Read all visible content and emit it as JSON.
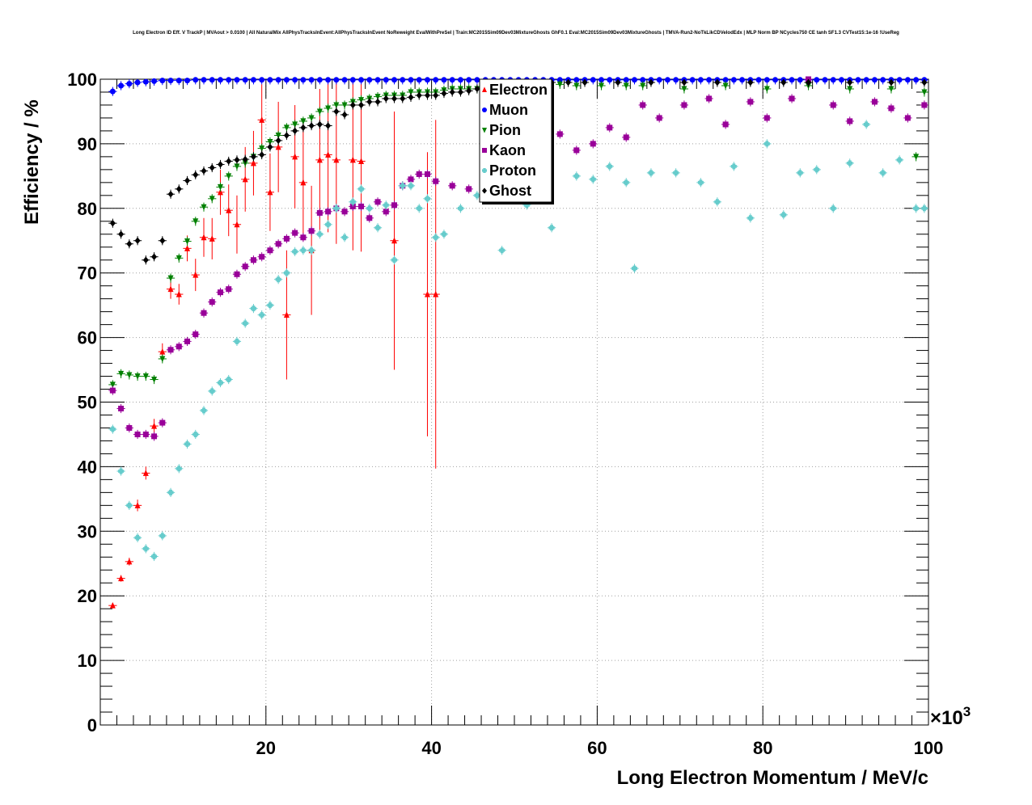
{
  "chart_data": {
    "type": "scatter",
    "title": "Long Electron ID Eff. V TrackP | MVAout > 0.0100 | All NaturalMix AllPhysTracksInEvent:AllPhysTracksInEvent NoReweight EvalWithPreSel | Train:MC2015Sim09Dev03MixtureGhosts GhF0.1 Eval:MC2015Sim09Dev03MixtureGhosts | TMVA-Run2-NoTkLikCDVelodEdx | MLP Norm BP NCycles750 CE tanh SF1.3 CVTest15:1e-16 !UseReg",
    "xlabel": "Long Electron Momentum / MeV/c",
    "ylabel": "Efficiency / %",
    "x_multiplier": "×10^3",
    "x_multiplier_base": "×10",
    "x_multiplier_exp": "3",
    "xlim": [
      0,
      100
    ],
    "ylim": [
      0,
      100
    ],
    "xticks": [
      20,
      40,
      60,
      80,
      100
    ],
    "yticks": [
      0,
      10,
      20,
      30,
      40,
      50,
      60,
      70,
      80,
      90,
      100
    ],
    "grid": true,
    "legend_position": "top-center",
    "series": [
      {
        "name": "Electron",
        "color": "#ff0000",
        "marker": "triangle-up",
        "x": [
          1.5,
          2.5,
          3.5,
          4.5,
          5.5,
          6.5,
          7.5,
          8.5,
          9.5,
          10.5,
          11.5,
          12.5,
          13.5,
          14.5,
          15.5,
          16.5,
          17.5,
          18.5,
          19.5,
          20.5,
          21.5,
          22.5,
          23.5,
          24.5,
          25.5,
          26.5,
          27.5,
          28.5,
          30.5,
          31.5,
          35.5,
          39.5,
          40.5
        ],
        "y": [
          18.5,
          22.7,
          25.3,
          34.0,
          39.0,
          46.3,
          57.8,
          67.5,
          66.7,
          73.8,
          69.7,
          75.5,
          75.3,
          82.5,
          79.7,
          77.5,
          84.5,
          87.0,
          93.7,
          82.5,
          89.5,
          63.5,
          88.0,
          84.0,
          73.5,
          87.5,
          88.3,
          87.5,
          87.5,
          87.3,
          75.0,
          66.7,
          66.7
        ],
        "err": [
          0.4,
          0.5,
          0.6,
          0.9,
          1.0,
          1.1,
          1.3,
          1.5,
          1.6,
          2.0,
          2.5,
          3.0,
          3.2,
          3.5,
          4.0,
          4.5,
          5.0,
          5.0,
          5.5,
          6.0,
          7.0,
          10.0,
          8.0,
          9.0,
          10.0,
          11.0,
          12.0,
          13.0,
          14.0,
          14.0,
          20.0,
          22.0,
          27.0
        ]
      },
      {
        "name": "Muon",
        "color": "#0000ff",
        "marker": "circle",
        "x": [
          1.5,
          2.5,
          3.5,
          4.5,
          5.5,
          6.5,
          7.5,
          8.5,
          9.5,
          10.5,
          11.5,
          12.5,
          13.5,
          14.5,
          15.5,
          16.5,
          17.5,
          18.5,
          19.5,
          20.5,
          21.5,
          22.5,
          23.5,
          24.5,
          25.5,
          26.5,
          27.5,
          28.5,
          29.5,
          30.5,
          31.5,
          32.5,
          33.5,
          34.5,
          35.5,
          36.5,
          37.5,
          38.5,
          39.5,
          40.5,
          41.5,
          42.5,
          43.5,
          44.5,
          45.5,
          46.5,
          47.5,
          48.5,
          49.5,
          50.5,
          51.5,
          52.5,
          53.5,
          54.5,
          55.5,
          56.5,
          57.5,
          58.5,
          59.5,
          60.5,
          61.5,
          62.5,
          63.5,
          64.5,
          65.5,
          66.5,
          67.5,
          68.5,
          69.5,
          70.5,
          71.5,
          72.5,
          73.5,
          74.5,
          75.5,
          76.5,
          77.5,
          78.5,
          79.5,
          80.5,
          81.5,
          82.5,
          83.5,
          84.5,
          85.5,
          86.5,
          87.5,
          88.5,
          89.5,
          90.5,
          91.5,
          92.5,
          93.5,
          94.5,
          95.5,
          96.5,
          97.5,
          98.5,
          99.5
        ],
        "y": [
          98.1,
          99.0,
          99.3,
          99.5,
          99.6,
          99.7,
          99.8,
          99.8,
          99.8,
          99.8,
          99.9,
          99.9,
          99.9,
          99.9,
          99.9,
          99.9,
          99.9,
          99.9,
          99.9,
          99.9,
          99.9,
          99.9,
          99.9,
          99.9,
          99.9,
          99.9,
          99.9,
          99.9,
          99.9,
          99.9,
          99.9,
          99.9,
          99.9,
          99.9,
          99.9,
          99.9,
          99.9,
          99.9,
          99.9,
          99.9,
          99.9,
          99.9,
          99.9,
          99.9,
          99.9,
          99.9,
          99.9,
          99.9,
          99.9,
          99.9,
          99.9,
          99.9,
          99.9,
          99.9,
          99.9,
          99.9,
          99.9,
          99.9,
          99.9,
          99.9,
          99.9,
          99.9,
          99.9,
          99.9,
          99.9,
          99.9,
          99.9,
          99.9,
          99.9,
          99.9,
          99.9,
          99.9,
          99.9,
          99.9,
          99.9,
          99.9,
          99.9,
          99.9,
          99.9,
          99.9,
          99.9,
          99.9,
          99.9,
          99.9,
          99.9,
          99.9,
          99.9,
          99.9,
          99.9,
          99.9,
          99.9,
          99.9,
          99.9,
          99.9,
          99.9,
          99.9,
          99.9,
          99.9,
          99.9
        ]
      },
      {
        "name": "Pion",
        "color": "#008000",
        "marker": "triangle-down",
        "x": [
          1.5,
          2.5,
          3.5,
          4.5,
          5.5,
          6.5,
          7.5,
          8.5,
          9.5,
          10.5,
          11.5,
          12.5,
          13.5,
          14.5,
          15.5,
          16.5,
          17.5,
          18.5,
          19.5,
          20.5,
          21.5,
          22.5,
          23.5,
          24.5,
          25.5,
          26.5,
          27.5,
          28.5,
          29.5,
          30.5,
          31.5,
          32.5,
          33.5,
          34.5,
          35.5,
          36.5,
          37.5,
          38.5,
          39.5,
          40.5,
          41.5,
          42.5,
          43.5,
          44.5,
          45.5,
          47.5,
          50.5,
          55.5,
          57.5,
          60.5,
          63.5,
          65.5,
          70.5,
          75.5,
          80.5,
          85.5,
          90.5,
          95.5,
          98.5,
          99.5
        ],
        "y": [
          52.7,
          54.4,
          54.2,
          54.0,
          54.0,
          53.5,
          56.7,
          69.2,
          72.3,
          74.9,
          78.0,
          80.2,
          81.5,
          83.3,
          85.0,
          86.5,
          87.0,
          88.0,
          89.3,
          90.3,
          91.3,
          92.5,
          93.0,
          93.5,
          94.0,
          95.0,
          95.5,
          96.0,
          96.0,
          96.5,
          96.8,
          97.0,
          97.3,
          97.5,
          97.5,
          97.5,
          98.0,
          98.0,
          98.0,
          98.0,
          98.3,
          98.5,
          98.5,
          98.5,
          98.5,
          99.0,
          99.0,
          99.2,
          99.0,
          99.0,
          99.0,
          99.0,
          98.5,
          99.0,
          98.5,
          99.0,
          98.5,
          98.5,
          88.0,
          98.0
        ]
      },
      {
        "name": "Kaon",
        "color": "#990099",
        "marker": "square",
        "x": [
          1.5,
          2.5,
          3.5,
          4.5,
          5.5,
          6.5,
          7.5,
          8.5,
          9.5,
          10.5,
          11.5,
          12.5,
          13.5,
          14.5,
          15.5,
          16.5,
          17.5,
          18.5,
          19.5,
          20.5,
          21.5,
          22.5,
          23.5,
          24.5,
          25.5,
          26.5,
          27.5,
          28.5,
          29.5,
          30.5,
          31.5,
          32.5,
          33.5,
          34.5,
          35.5,
          36.5,
          37.5,
          38.5,
          39.5,
          40.5,
          42.5,
          44.5,
          46.5,
          48.5,
          50.5,
          52.5,
          55.5,
          57.5,
          59.5,
          61.5,
          63.5,
          65.5,
          67.5,
          70.5,
          73.5,
          75.5,
          78.5,
          80.5,
          83.5,
          85.5,
          88.5,
          90.5,
          93.5,
          95.5,
          97.5,
          99.5
        ],
        "y": [
          51.8,
          49.0,
          46.0,
          45.0,
          45.0,
          44.7,
          46.8,
          58.1,
          58.6,
          59.4,
          60.5,
          63.8,
          65.5,
          67.0,
          67.5,
          69.8,
          71.0,
          72.0,
          72.5,
          73.5,
          74.5,
          75.3,
          76.2,
          75.5,
          76.5,
          79.3,
          79.5,
          80.0,
          79.5,
          80.3,
          80.3,
          78.5,
          81.0,
          79.5,
          80.5,
          83.5,
          84.5,
          85.3,
          85.3,
          84.2,
          83.5,
          83.0,
          85.0,
          84.0,
          86.0,
          87.0,
          91.5,
          89.0,
          90.0,
          92.5,
          91.0,
          96.0,
          94.0,
          96.0,
          97.0,
          93.0,
          96.5,
          94.0,
          97.0,
          100.0,
          96.0,
          93.5,
          96.5,
          95.5,
          94.0,
          96.0
        ]
      },
      {
        "name": "Proton",
        "color": "#66cccc",
        "marker": "cross",
        "x": [
          1.5,
          2.5,
          3.5,
          4.5,
          5.5,
          6.5,
          7.5,
          8.5,
          9.5,
          10.5,
          11.5,
          12.5,
          13.5,
          14.5,
          15.5,
          16.5,
          17.5,
          18.5,
          19.5,
          20.5,
          21.5,
          22.5,
          23.5,
          24.5,
          25.5,
          26.5,
          27.5,
          28.5,
          29.5,
          30.5,
          31.5,
          32.5,
          33.5,
          34.5,
          35.5,
          36.5,
          37.5,
          38.5,
          39.5,
          40.5,
          41.5,
          43.5,
          45.5,
          48.5,
          51.5,
          54.5,
          57.5,
          59.5,
          61.5,
          63.5,
          64.5,
          66.5,
          69.5,
          72.5,
          74.5,
          76.5,
          78.5,
          80.5,
          82.5,
          84.5,
          86.5,
          88.5,
          90.5,
          92.5,
          94.5,
          96.5,
          98.5,
          99.5
        ],
        "y": [
          45.8,
          39.3,
          34.0,
          29.0,
          27.3,
          26.1,
          29.3,
          36.0,
          39.7,
          43.5,
          45.0,
          48.7,
          51.7,
          53.0,
          53.5,
          59.4,
          62.2,
          64.5,
          63.5,
          65.0,
          69.0,
          70.0,
          73.3,
          73.5,
          73.5,
          76.0,
          77.5,
          80.0,
          75.5,
          81.0,
          83.0,
          80.0,
          77.0,
          80.5,
          72.0,
          83.5,
          83.5,
          80.0,
          81.5,
          75.5,
          76.0,
          80.0,
          82.0,
          73.5,
          80.5,
          77.0,
          85.0,
          84.5,
          86.5,
          84.0,
          70.7,
          85.5,
          85.5,
          84.0,
          81.0,
          86.5,
          78.5,
          90.0,
          79.0,
          85.5,
          86.0,
          80.0,
          87.0,
          93.0,
          85.5,
          87.5,
          80.0,
          80.0
        ]
      },
      {
        "name": "Ghost",
        "color": "#000000",
        "marker": "diamond",
        "x": [
          1.5,
          2.5,
          3.5,
          4.5,
          5.5,
          6.5,
          7.5,
          8.5,
          9.5,
          10.5,
          11.5,
          12.5,
          13.5,
          14.5,
          15.5,
          16.5,
          17.5,
          18.5,
          19.5,
          20.5,
          21.5,
          22.5,
          23.5,
          24.5,
          25.5,
          26.5,
          27.5,
          28.5,
          29.5,
          30.5,
          31.5,
          32.5,
          33.5,
          34.5,
          35.5,
          36.5,
          37.5,
          38.5,
          39.5,
          40.5,
          41.5,
          42.5,
          43.5,
          44.5,
          45.5,
          46.5,
          47.5,
          48.5,
          50.5,
          54.5,
          56.5,
          58.5,
          62.5,
          66.5,
          70.5,
          74.5,
          78.5,
          82.5,
          85.5,
          90.5,
          95.5,
          99.5
        ],
        "y": [
          77.7,
          76.0,
          74.5,
          75.0,
          72.0,
          72.5,
          75.0,
          82.2,
          83.0,
          84.3,
          85.2,
          85.8,
          86.3,
          86.8,
          87.3,
          87.5,
          87.6,
          88.0,
          88.3,
          89.5,
          90.5,
          91.3,
          92.0,
          92.5,
          92.8,
          93.0,
          92.8,
          95.0,
          94.5,
          96.0,
          96.0,
          96.5,
          96.5,
          97.0,
          97.0,
          97.0,
          97.2,
          97.5,
          97.5,
          97.5,
          97.8,
          98.0,
          98.0,
          98.2,
          98.5,
          98.5,
          98.5,
          99.0,
          99.0,
          99.5,
          99.5,
          99.5,
          99.5,
          99.5,
          99.5,
          99.5,
          99.5,
          99.5,
          99.5,
          99.5,
          99.5,
          99.5
        ]
      }
    ]
  }
}
